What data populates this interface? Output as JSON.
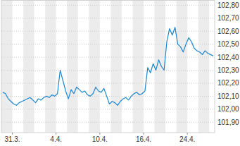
{
  "chart_data": {
    "type": "line",
    "categories": [
      null,
      null,
      null,
      null,
      "31.3.",
      null,
      null,
      null,
      null,
      null,
      null,
      null,
      null,
      null,
      null,
      null,
      null,
      null,
      null,
      null,
      "4.4.",
      null,
      null,
      null,
      null,
      null,
      null,
      null,
      null,
      null,
      null,
      null,
      null,
      null,
      null,
      null,
      "10.4.",
      null,
      null,
      null,
      null,
      null,
      null,
      null,
      null,
      null,
      null,
      null,
      null,
      null,
      null,
      null,
      "16.4.",
      null,
      null,
      null,
      null,
      null,
      null,
      null,
      null,
      null,
      null,
      null,
      null,
      null,
      null,
      null,
      "24.4.",
      null,
      null,
      null,
      null,
      null,
      null,
      null,
      null,
      null
    ],
    "values": [
      102.13,
      102.12,
      102.08,
      102.06,
      102.04,
      102.03,
      102.05,
      102.06,
      102.07,
      102.08,
      102.09,
      102.07,
      102.05,
      102.08,
      102.07,
      102.09,
      102.1,
      102.09,
      102.11,
      102.1,
      102.12,
      102.3,
      102.22,
      102.14,
      102.08,
      102.15,
      102.12,
      102.17,
      102.15,
      102.13,
      102.14,
      102.11,
      102.1,
      102.12,
      102.17,
      102.14,
      102.13,
      102.16,
      102.1,
      102.04,
      102.06,
      102.05,
      102.03,
      102.06,
      102.08,
      102.09,
      102.07,
      102.1,
      102.12,
      102.13,
      102.11,
      102.12,
      102.14,
      102.32,
      102.28,
      102.35,
      102.3,
      102.38,
      102.33,
      102.3,
      102.52,
      102.62,
      102.57,
      102.63,
      102.5,
      102.48,
      102.44,
      102.5,
      102.55,
      102.52,
      102.47,
      102.45,
      102.44,
      102.42,
      102.45,
      102.43,
      102.42,
      102.41
    ],
    "color": "#1a86d0",
    "ylim": [
      101.82,
      102.84
    ],
    "yticks": [
      {
        "value": 101.9,
        "label": "101,90"
      },
      {
        "value": 102.0,
        "label": "102,00"
      },
      {
        "value": 102.1,
        "label": "102,10"
      },
      {
        "value": 102.2,
        "label": "102,20"
      },
      {
        "value": 102.3,
        "label": "102,30"
      },
      {
        "value": 102.4,
        "label": "102,40"
      },
      {
        "value": 102.5,
        "label": "102,50"
      },
      {
        "value": 102.6,
        "label": "102,60"
      },
      {
        "value": 102.7,
        "label": "102,70"
      },
      {
        "value": 102.8,
        "label": "102,80"
      }
    ],
    "grid": true
  }
}
